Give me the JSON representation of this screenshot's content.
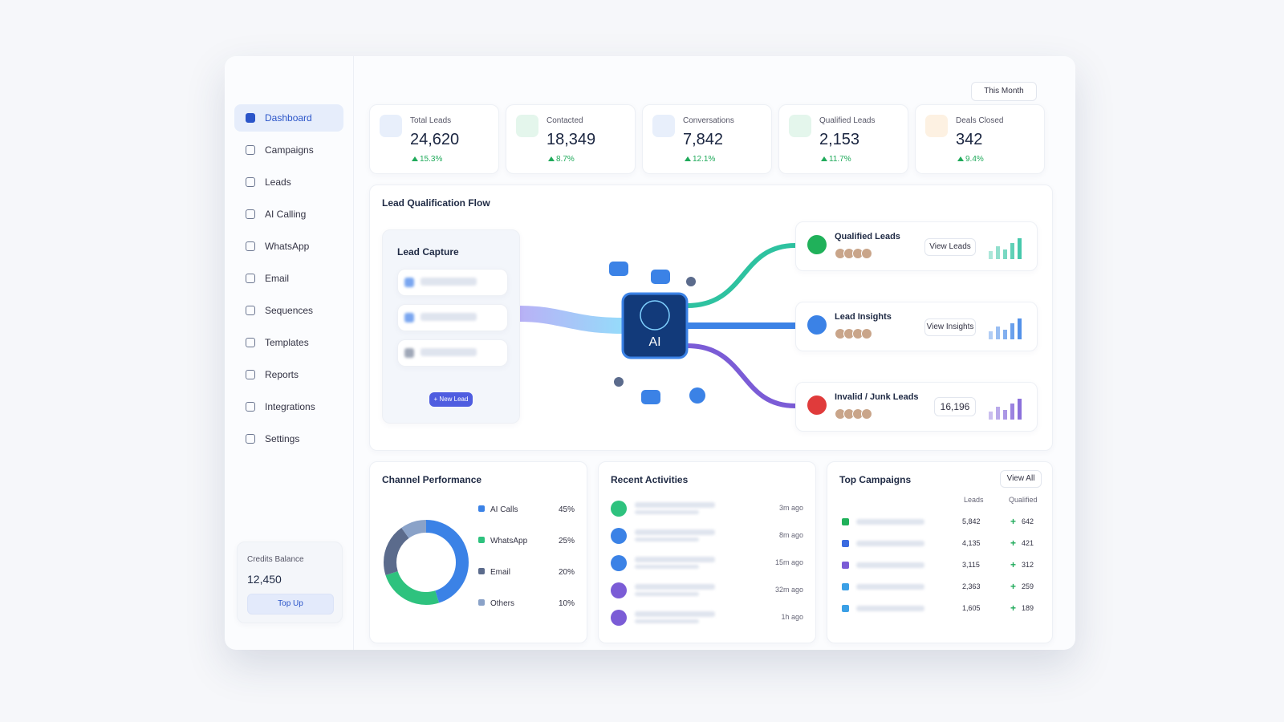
{
  "filter": "This Month",
  "sidebar": {
    "nav": [
      "Dashboard",
      "Campaigns",
      "Leads",
      "AI Calling",
      "WhatsApp",
      "Email",
      "Sequences",
      "Templates",
      "Reports",
      "Integrations",
      "Settings"
    ],
    "credits": {
      "label": "Credits Balance",
      "value": "12,450",
      "button": "Top Up"
    }
  },
  "stats": [
    {
      "label": "Total Leads",
      "value": "24,620",
      "change": "15.3%"
    },
    {
      "label": "Contacted",
      "value": "18,349",
      "change": "8.7%"
    },
    {
      "label": "Conversations",
      "value": "7,842",
      "change": "12.1%"
    },
    {
      "label": "Qualified Leads",
      "value": "2,153",
      "change": "11.7%"
    },
    {
      "label": "Deals Closed",
      "value": "342",
      "change": "9.4%"
    }
  ],
  "flow": {
    "title": "Lead Qualification Flow",
    "capture": {
      "title": "Lead Capture",
      "button": "+ New Lead"
    },
    "ai": "AI",
    "outputs": [
      {
        "title": "Qualified Leads",
        "action": "View Leads"
      },
      {
        "title": "Lead Insights",
        "action": "View Insights"
      },
      {
        "title": "Invalid / Junk Leads",
        "count": "16,196"
      }
    ]
  },
  "chart_data": {
    "type": "pie",
    "title": "Channel Performance",
    "categories": [
      "AI Calls",
      "WhatsApp",
      "Email",
      "Others"
    ],
    "values": [
      45,
      25,
      20,
      10
    ],
    "value_labels": [
      "45%",
      "25%",
      "20%",
      "10%"
    ],
    "colors": [
      "#3b82e6",
      "#2ec27e",
      "#5b6b8c",
      "#8aa2c8"
    ]
  },
  "recent_activities": {
    "title": "Recent Activities",
    "times": [
      "3m ago",
      "8m ago",
      "15m ago",
      "32m ago",
      "1h ago"
    ]
  },
  "top_campaigns": {
    "title": "Top Campaigns",
    "action": "View All",
    "columns": [
      "Leads",
      "Qualified"
    ],
    "rows": [
      [
        "5,842",
        "642"
      ],
      [
        "4,135",
        "421"
      ],
      [
        "3,115",
        "312"
      ],
      [
        "2,363",
        "259"
      ],
      [
        "1,605",
        "189"
      ]
    ]
  }
}
